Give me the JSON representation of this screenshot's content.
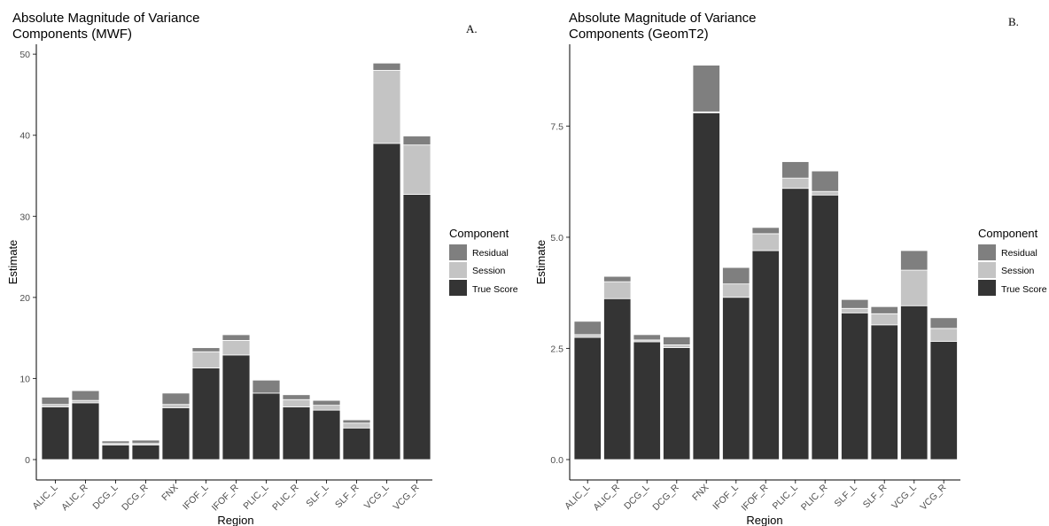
{
  "colors": {
    "Residual": "#7f7f7f",
    "Session": "#c4c4c4",
    "True Score": "#343434",
    "axis": "#000000",
    "tick_text": "#4d4d4d"
  },
  "chart_data": [
    {
      "type": "bar",
      "stacked": true,
      "title": "Absolute Magnitude of Variance Components (MWF)",
      "title_lines": [
        "Absolute Magnitude of Variance",
        "Components (MWF)"
      ],
      "panel_label": "A.",
      "xlabel": "Region",
      "ylabel": "Estimate",
      "ylim": [
        0,
        51
      ],
      "yticks": [
        0,
        10,
        20,
        30,
        40,
        50
      ],
      "ytick_labels": [
        "0",
        "10",
        "20",
        "30",
        "40",
        "50"
      ],
      "categories": [
        "ALIC_L",
        "ALIC_R",
        "DCG_L",
        "DCG_R",
        "FNX",
        "IFOF_L",
        "IFOF_R",
        "PLIC_L",
        "PLIC_R",
        "SLF_L",
        "SLF_R",
        "VCG_L",
        "VCG_R"
      ],
      "series": [
        {
          "name": "True Score",
          "values": [
            6.5,
            7.0,
            1.8,
            1.8,
            6.4,
            11.3,
            12.9,
            8.2,
            6.5,
            6.1,
            3.9,
            39.0,
            32.7
          ]
        },
        {
          "name": "Session",
          "values": [
            0.3,
            0.3,
            0.2,
            0.2,
            0.4,
            2.0,
            1.8,
            0.0,
            0.9,
            0.6,
            0.6,
            9.0,
            6.1
          ]
        },
        {
          "name": "Residual",
          "values": [
            0.9,
            1.2,
            0.3,
            0.4,
            1.4,
            0.5,
            0.7,
            1.6,
            0.6,
            0.6,
            0.4,
            0.9,
            1.1
          ]
        }
      ],
      "legend": {
        "title": "Component",
        "position": "right",
        "entries": [
          "Residual",
          "Session",
          "True Score"
        ]
      },
      "grid": false
    },
    {
      "type": "bar",
      "stacked": true,
      "title": "Absolute Magnitude of Variance Components (GeomT2)",
      "title_lines": [
        "Absolute Magnitude of Variance",
        "Components (GeomT2)"
      ],
      "panel_label": "B.",
      "xlabel": "Region",
      "ylabel": "Estimate",
      "ylim": [
        0,
        9.3
      ],
      "yticks": [
        0,
        2.5,
        5.0,
        7.5
      ],
      "ytick_labels": [
        "0.0",
        "2.5",
        "5.0",
        "7.5"
      ],
      "categories": [
        "ALIC_L",
        "ALIC_R",
        "DCG_L",
        "DCG_R",
        "FNX",
        "IFOF_L",
        "IFOF_R",
        "PLIC_L",
        "PLIC_R",
        "SLF_L",
        "SLF_R",
        "VCG_L",
        "VCG_R"
      ],
      "series": [
        {
          "name": "True Score",
          "values": [
            2.75,
            3.62,
            2.65,
            2.52,
            7.8,
            3.65,
            4.7,
            6.1,
            5.95,
            3.3,
            3.03,
            3.46,
            2.66
          ]
        },
        {
          "name": "Session",
          "values": [
            0.06,
            0.38,
            0.04,
            0.06,
            0.02,
            0.3,
            0.38,
            0.23,
            0.08,
            0.1,
            0.25,
            0.8,
            0.29
          ]
        },
        {
          "name": "Residual",
          "values": [
            0.3,
            0.12,
            0.12,
            0.18,
            1.05,
            0.37,
            0.14,
            0.37,
            0.46,
            0.2,
            0.16,
            0.44,
            0.24
          ]
        }
      ],
      "legend": {
        "title": "Component",
        "position": "right",
        "entries": [
          "Residual",
          "Session",
          "True Score"
        ]
      },
      "grid": false
    }
  ]
}
